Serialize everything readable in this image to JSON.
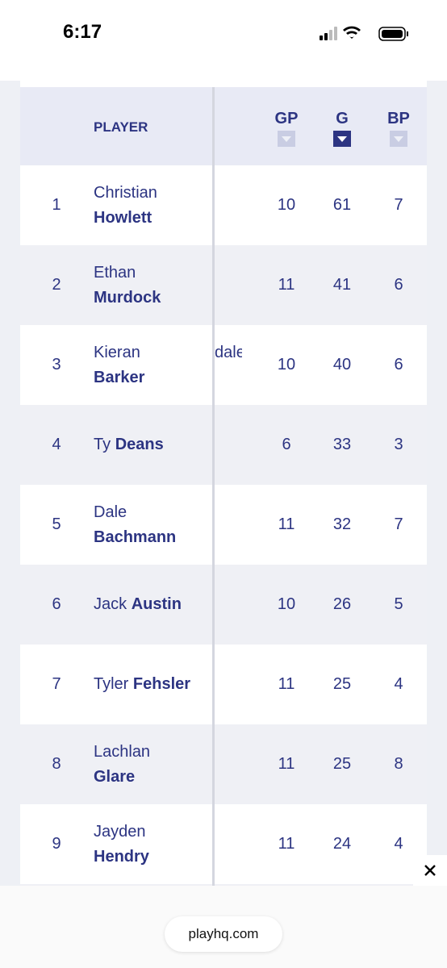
{
  "status_bar": {
    "time": "6:17"
  },
  "table": {
    "headers": {
      "player": "PLAYER",
      "gp": "GP",
      "g": "G",
      "bp": "BP"
    },
    "sorted_column": "g",
    "rows": [
      {
        "rank": "1",
        "first": "Christian",
        "last": "Howlett",
        "wrapped": true,
        "gp": "10",
        "g": "61",
        "bp": "7"
      },
      {
        "rank": "2",
        "first": "Ethan",
        "last": "Murdock",
        "wrapped": true,
        "gp": "11",
        "g": "41",
        "bp": "6"
      },
      {
        "rank": "3",
        "first": "Kieran",
        "last": "Barker",
        "wrapped": true,
        "clipped_text": "dale",
        "gp": "10",
        "g": "40",
        "bp": "6"
      },
      {
        "rank": "4",
        "first": "Ty",
        "last": "Deans",
        "wrapped": false,
        "gp": "6",
        "g": "33",
        "bp": "3"
      },
      {
        "rank": "5",
        "first": "Dale",
        "last": "Bachmann",
        "wrapped": true,
        "gp": "11",
        "g": "32",
        "bp": "7"
      },
      {
        "rank": "6",
        "first": "Jack",
        "last": "Austin",
        "wrapped": false,
        "gp": "10",
        "g": "26",
        "bp": "5"
      },
      {
        "rank": "7",
        "first": "Tyler",
        "last": "Fehsler",
        "wrapped": false,
        "gp": "11",
        "g": "25",
        "bp": "4"
      },
      {
        "rank": "8",
        "first": "Lachlan",
        "last": "Glare",
        "wrapped": true,
        "gp": "11",
        "g": "25",
        "bp": "8"
      },
      {
        "rank": "9",
        "first": "Jayden",
        "last": "Hendry",
        "wrapped": true,
        "gp": "11",
        "g": "24",
        "bp": "4"
      }
    ]
  },
  "footer": {
    "url": "playhq.com"
  }
}
